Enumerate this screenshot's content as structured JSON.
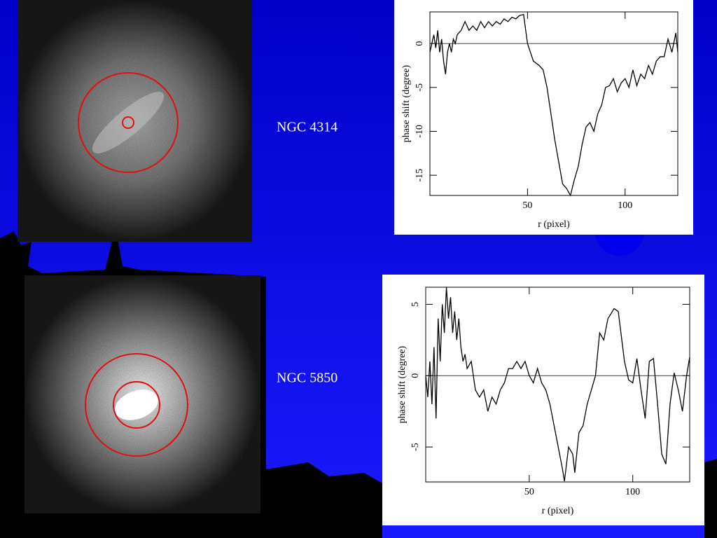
{
  "captions": [
    "NGC 4314",
    "NGC 5850"
  ],
  "chart_data": [
    {
      "type": "line",
      "xlabel": "r (pixel)",
      "ylabel": "phase shift (degree)",
      "xlim": [
        0,
        127
      ],
      "ylim": [
        -17.3,
        3.6
      ],
      "xticks": [
        50,
        100
      ],
      "yticks": [
        0,
        -5,
        -10,
        -15
      ],
      "series": [
        {
          "color": "#000000",
          "x": [
            0,
            2,
            3,
            4,
            5,
            6,
            7,
            8,
            9,
            10,
            11,
            12,
            13,
            14,
            16,
            18,
            20,
            22,
            24,
            26,
            28,
            30,
            32,
            34,
            36,
            38,
            40,
            42,
            44,
            46,
            48,
            50,
            53,
            56,
            58,
            60,
            62,
            64,
            66,
            68,
            70,
            72,
            74,
            76,
            78,
            80,
            82,
            84,
            86,
            88,
            90,
            92,
            94,
            96,
            98,
            100,
            102,
            104,
            106,
            108,
            110,
            112,
            114,
            116,
            118,
            120,
            122,
            124,
            126,
            127
          ],
          "values": [
            -1,
            1,
            -0.5,
            1.5,
            -1,
            0.5,
            -2,
            -3.5,
            -1,
            0,
            -1,
            0.5,
            0,
            1,
            1.5,
            2.5,
            1.5,
            2,
            1.5,
            2.5,
            1.8,
            2.5,
            2,
            2.5,
            2.2,
            2.8,
            2.5,
            3,
            2.8,
            3.2,
            3.3,
            0,
            -2,
            -2.5,
            -3,
            -5,
            -8,
            -11,
            -13.5,
            -16,
            -16.5,
            -17.3,
            -15.5,
            -14,
            -11.5,
            -9.5,
            -9,
            -10,
            -8,
            -7,
            -5,
            -4.8,
            -4,
            -5.5,
            -4.5,
            -4,
            -5,
            -3,
            -4.8,
            -3.5,
            -4,
            -2.5,
            -3.5,
            -2,
            -1.5,
            -1.5,
            0.5,
            -1,
            1.2,
            -1
          ]
        }
      ]
    },
    {
      "type": "line",
      "xlabel": "r (pixel)",
      "ylabel": "phase shift (degree)",
      "xlim": [
        0,
        127.5
      ],
      "ylim": [
        -7.45,
        6.2
      ],
      "xticks": [
        50,
        100
      ],
      "yticks": [
        5,
        0,
        -5
      ],
      "series": [
        {
          "color": "#000000",
          "x": [
            0,
            1,
            2,
            3,
            4,
            5,
            6,
            7,
            8,
            9,
            10,
            11,
            12,
            13,
            14,
            15,
            16,
            17,
            18,
            19,
            20,
            22,
            24,
            26,
            28,
            30,
            32,
            34,
            36,
            38,
            40,
            42,
            44,
            46,
            48,
            50,
            52,
            54,
            56,
            58,
            60,
            62,
            64,
            66,
            67,
            69,
            71,
            72,
            74,
            76,
            78,
            80,
            82,
            84,
            86,
            88,
            91,
            93,
            96,
            98,
            100,
            102,
            104,
            106,
            108,
            110,
            112,
            114,
            116,
            118,
            120,
            122,
            124,
            126,
            127.5
          ],
          "values": [
            0,
            -1.5,
            1,
            -2,
            2,
            -3,
            4,
            1,
            5,
            3,
            6.2,
            4,
            5.5,
            3,
            4.5,
            2.5,
            4,
            2,
            1,
            1.5,
            0.5,
            1,
            -1,
            -1.5,
            -1,
            -2.5,
            -1.5,
            -2,
            -1,
            -0.5,
            0.5,
            0.5,
            1,
            0.5,
            1,
            0,
            -0.5,
            0.5,
            -0.5,
            -1,
            -2,
            -3.5,
            -5,
            -6.5,
            -7.4,
            -5,
            -5.5,
            -6.8,
            -4,
            -3.5,
            -2,
            -1,
            0,
            3,
            2.5,
            4,
            4.7,
            4.5,
            1,
            -0.3,
            -0.5,
            1.2,
            -1,
            -3,
            1,
            1.2,
            -2,
            -5.5,
            -6.2,
            -2,
            0.2,
            -1,
            -2.5,
            0,
            1.3
          ]
        }
      ]
    }
  ]
}
